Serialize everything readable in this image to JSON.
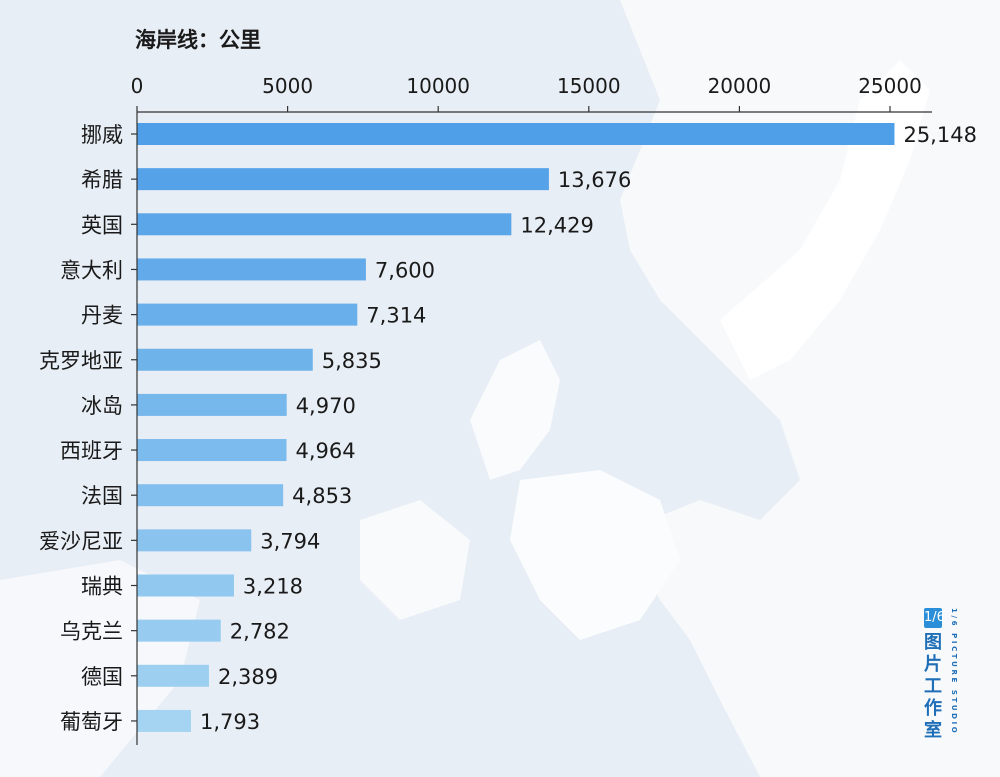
{
  "chart_data": {
    "type": "bar",
    "orientation": "horizontal",
    "title": "海岸线：公里",
    "categories": [
      "挪威",
      "希腊",
      "英国",
      "意大利",
      "丹麦",
      "克罗地亚",
      "冰岛",
      "西班牙",
      "法国",
      "爱沙尼亚",
      "瑞典",
      "乌克兰",
      "德国",
      "葡萄牙"
    ],
    "values": [
      25148,
      13676,
      12429,
      7600,
      7314,
      5835,
      4970,
      4964,
      4853,
      3794,
      3218,
      2782,
      2389,
      1793
    ],
    "value_labels": [
      "25,148",
      "13,676",
      "12,429",
      "7,600",
      "7,314",
      "5,835",
      "4,970",
      "4,964",
      "4,853",
      "3,794",
      "3,218",
      "2,782",
      "2,389",
      "1,793"
    ],
    "xticks": [
      "0",
      "5000",
      "10000",
      "15000",
      "20000",
      "25000"
    ],
    "xlim": [
      0,
      25000
    ],
    "x_axis_position": "top",
    "grid": false,
    "legend": "none",
    "colors": {
      "bar_start": "#4e9ee8",
      "bar_end": "#a4d4f1",
      "axis": "#333333",
      "text": "#1a1a1a"
    }
  },
  "watermark": {
    "badge": "1/6",
    "text_cn": "图片工作室",
    "text_en": "1/6 PICTURE STUDIO"
  }
}
